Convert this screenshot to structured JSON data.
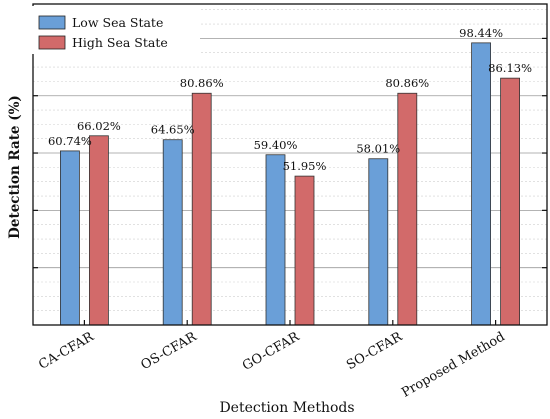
{
  "chart_data": {
    "type": "bar",
    "title": "",
    "xlabel": "Detection Methods",
    "ylabel": "Detection Rate (%)",
    "categories": [
      "CA-CFAR",
      "OS-CFAR",
      "GO-CFAR",
      "SO-CFAR",
      "Proposed Method"
    ],
    "series": [
      {
        "name": "Low Sea State",
        "color": "#6a9fd8",
        "values": [
          60.74,
          64.65,
          59.4,
          58.01,
          98.44
        ],
        "labels": [
          "60.74%",
          "64.65%",
          "59.40%",
          "58.01%",
          "98.44%"
        ]
      },
      {
        "name": "High Sea State",
        "color": "#d26a6a",
        "values": [
          66.02,
          80.86,
          51.95,
          80.86,
          86.13
        ],
        "labels": [
          "66.02%",
          "80.86%",
          "51.95%",
          "80.86%",
          "86.13%"
        ]
      }
    ],
    "ylim": [
      0,
      112
    ],
    "yticks_major": [
      0,
      20,
      40,
      60,
      80,
      100
    ],
    "grid": true,
    "legend": "top-left"
  }
}
